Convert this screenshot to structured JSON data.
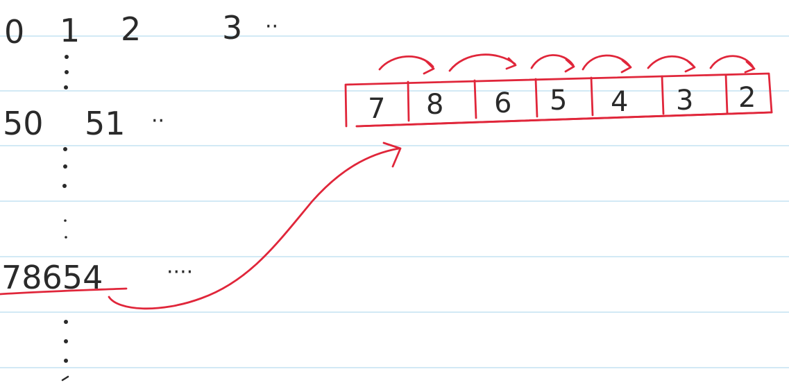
{
  "top_row": [
    "0",
    "1",
    "2",
    "3",
    "··"
  ],
  "second_row": [
    "50",
    "51",
    "··"
  ],
  "key_number": "78654",
  "key_trailing": "····",
  "array_cells": [
    "7",
    "8",
    "6",
    "5",
    "4",
    "3",
    "2"
  ],
  "colors": {
    "ink": "#2a2a2a",
    "red": "#e0263a",
    "rule": "#b7dcef",
    "paper": "#ffffff"
  }
}
